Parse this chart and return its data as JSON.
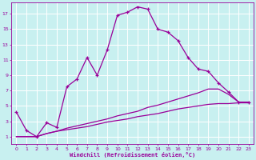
{
  "xlabel": "Windchill (Refroidissement éolien,°C)",
  "bg_color": "#c8f0f0",
  "line_color": "#990099",
  "grid_color": "#ffffff",
  "xlim": [
    -0.5,
    23.5
  ],
  "ylim": [
    0,
    18.5
  ],
  "xticks": [
    0,
    1,
    2,
    3,
    4,
    5,
    6,
    7,
    8,
    9,
    10,
    11,
    12,
    13,
    14,
    15,
    16,
    17,
    18,
    19,
    20,
    21,
    22,
    23
  ],
  "yticks": [
    1,
    3,
    5,
    7,
    9,
    11,
    13,
    15,
    17
  ],
  "series1_x": [
    0,
    1,
    2,
    3,
    4,
    5,
    6,
    7,
    8,
    9,
    10,
    11,
    12,
    13,
    14,
    15,
    16,
    17,
    18,
    19,
    20,
    21,
    22,
    23
  ],
  "series1_y": [
    4.2,
    1.8,
    1.0,
    2.8,
    2.2,
    7.5,
    8.5,
    11.3,
    9.0,
    12.3,
    16.8,
    17.2,
    17.9,
    17.6,
    15.0,
    14.6,
    13.5,
    11.3,
    9.8,
    9.5,
    8.0,
    6.8,
    5.5,
    5.5
  ],
  "series2_x": [
    0,
    1,
    2,
    3,
    4,
    5,
    6,
    7,
    8,
    9,
    10,
    11,
    12,
    13,
    14,
    15,
    16,
    17,
    18,
    19,
    20,
    21,
    22,
    23
  ],
  "series2_y": [
    1.0,
    1.0,
    1.0,
    1.4,
    1.7,
    1.9,
    2.1,
    2.3,
    2.6,
    2.9,
    3.1,
    3.3,
    3.6,
    3.8,
    4.0,
    4.3,
    4.6,
    4.8,
    5.0,
    5.2,
    5.3,
    5.3,
    5.4,
    5.4
  ],
  "series3_x": [
    0,
    1,
    2,
    3,
    4,
    5,
    6,
    7,
    8,
    9,
    10,
    11,
    12,
    13,
    14,
    15,
    16,
    17,
    18,
    19,
    20,
    21,
    22,
    23
  ],
  "series3_y": [
    1.0,
    1.0,
    1.0,
    1.4,
    1.7,
    2.1,
    2.4,
    2.7,
    3.0,
    3.3,
    3.7,
    4.0,
    4.3,
    4.8,
    5.1,
    5.5,
    5.9,
    6.3,
    6.7,
    7.2,
    7.2,
    6.5,
    5.5,
    5.4
  ]
}
